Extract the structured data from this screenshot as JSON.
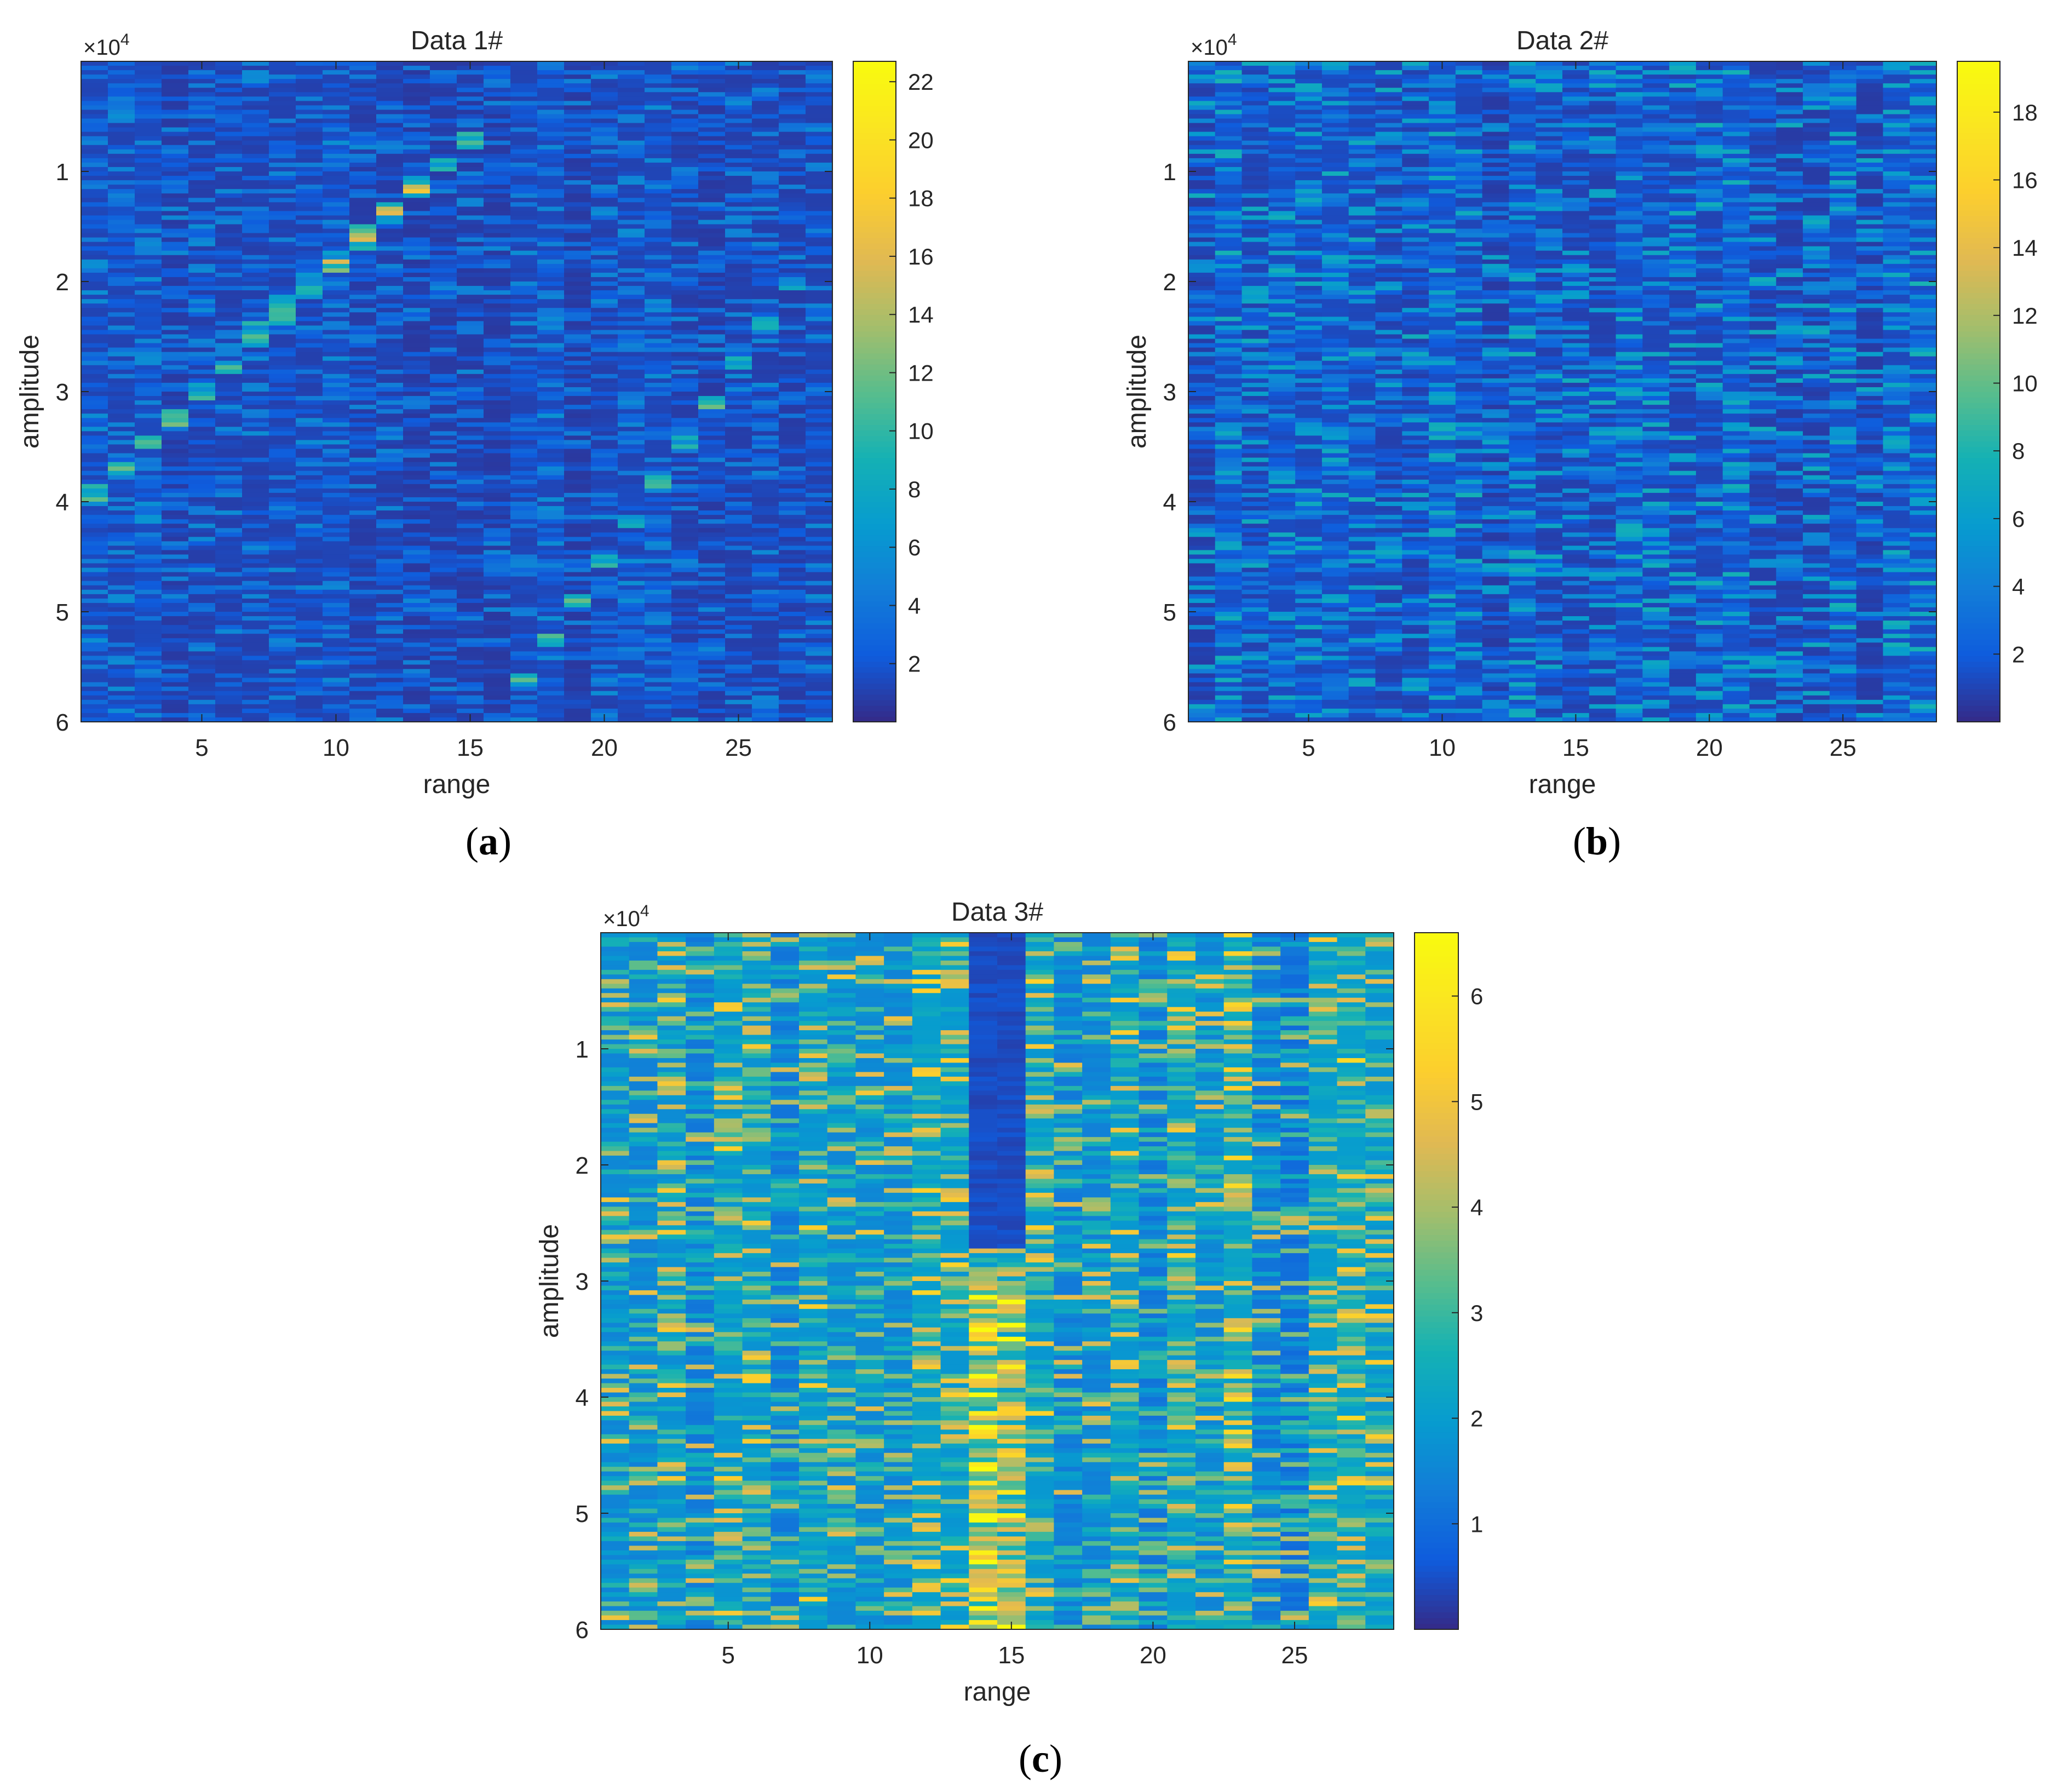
{
  "chart_data": [
    {
      "type": "heatmap",
      "panel_label": "a",
      "title": "Data 1#",
      "xlabel": "range",
      "ylabel": "amplitude",
      "y_exponent_label": "×10",
      "y_exponent": "4",
      "xlim": [
        0.5,
        28.5
      ],
      "ylim": [
        0,
        60000
      ],
      "y_reversed": true,
      "x_ticks": [
        5,
        10,
        15,
        20,
        25
      ],
      "x_tick_labels": [
        "5",
        "10",
        "15",
        "20",
        "25"
      ],
      "y_ticks": [
        10000,
        20000,
        30000,
        40000,
        50000,
        60000
      ],
      "y_tick_labels": [
        "1",
        "2",
        "3",
        "4",
        "5",
        "6"
      ],
      "colorbar": {
        "range": [
          0,
          22.7
        ],
        "ticks": [
          2,
          4,
          6,
          8,
          10,
          12,
          14,
          16,
          18,
          20,
          22
        ],
        "tick_labels": [
          "2",
          "4",
          "6",
          "8",
          "10",
          "12",
          "14",
          "16",
          "18",
          "20",
          "22"
        ]
      },
      "colormap": "parula",
      "background_level": 1.0,
      "noise_level": 1.6,
      "columns": 28,
      "features": [
        {
          "kind": "diagonal",
          "from": [
            1,
            39000
          ],
          "to": [
            15,
            7000
          ],
          "peak": 8
        },
        {
          "kind": "diagonal",
          "from": [
            7,
            24000
          ],
          "to": [
            13,
            11000
          ],
          "peak": 6
        },
        {
          "kind": "diagonal",
          "from": [
            17,
            56000
          ],
          "to": [
            27,
            20000
          ],
          "peak": 7
        }
      ]
    },
    {
      "type": "heatmap",
      "panel_label": "b",
      "title": "Data 2#",
      "xlabel": "range",
      "ylabel": "amplitude",
      "y_exponent_label": "×10",
      "y_exponent": "4",
      "xlim": [
        0.5,
        28.5
      ],
      "ylim": [
        0,
        60000
      ],
      "y_reversed": true,
      "x_ticks": [
        5,
        10,
        15,
        20,
        25
      ],
      "x_tick_labels": [
        "5",
        "10",
        "15",
        "20",
        "25"
      ],
      "y_ticks": [
        10000,
        20000,
        30000,
        40000,
        50000,
        60000
      ],
      "y_tick_labels": [
        "1",
        "2",
        "3",
        "4",
        "5",
        "6"
      ],
      "colorbar": {
        "range": [
          0,
          19.5
        ],
        "ticks": [
          2,
          4,
          6,
          8,
          10,
          12,
          14,
          16,
          18
        ],
        "tick_labels": [
          "2",
          "4",
          "6",
          "8",
          "10",
          "12",
          "14",
          "16",
          "18"
        ]
      },
      "colormap": "parula",
      "background_level": 1.0,
      "noise_level": 2.2,
      "columns": 28,
      "features": []
    },
    {
      "type": "heatmap",
      "panel_label": "c",
      "title": "Data 3#",
      "xlabel": "range",
      "ylabel": "amplitude",
      "y_exponent_label": "×10",
      "y_exponent": "4",
      "xlim": [
        0.5,
        28.5
      ],
      "ylim": [
        0,
        60000
      ],
      "y_reversed": true,
      "x_ticks": [
        5,
        10,
        15,
        20,
        25
      ],
      "x_tick_labels": [
        "5",
        "10",
        "15",
        "20",
        "25"
      ],
      "y_ticks": [
        10000,
        20000,
        30000,
        40000,
        50000,
        60000
      ],
      "y_tick_labels": [
        "1",
        "2",
        "3",
        "4",
        "5",
        "6"
      ],
      "colorbar": {
        "range": [
          0,
          6.6
        ],
        "ticks": [
          1,
          2,
          3,
          4,
          5,
          6
        ],
        "tick_labels": [
          "1",
          "2",
          "3",
          "4",
          "5",
          "6"
        ]
      },
      "colormap": "parula",
      "background_level": 1.5,
      "noise_level": 1.2,
      "columns": 28,
      "features": [
        {
          "kind": "dark_band",
          "columns": [
            14,
            15
          ],
          "until": 27000,
          "level": 0.3
        },
        {
          "kind": "bright_band",
          "columns": [
            14,
            15
          ],
          "from": 30000,
          "peak": 3
        }
      ]
    }
  ]
}
